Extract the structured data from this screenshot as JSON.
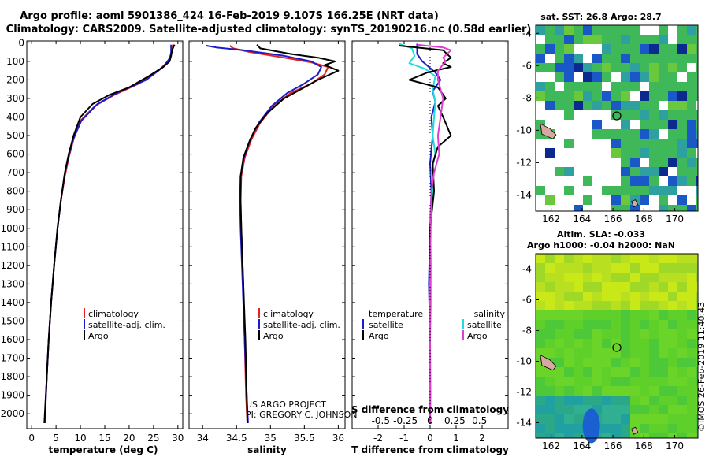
{
  "header": {
    "title_line1": "Argo profile: aoml 5901386_424 16-Feb-2019 9.107S 166.25E (NRT data)",
    "title_line2": "Climatology: CARS2009. Satellite-adjusted climatology: synTS_20190216.nc (0.58d earlier)"
  },
  "credits": {
    "line1": "US ARGO PROJECT",
    "line2": "PI: GREGORY C. JOHNSON"
  },
  "timestamp": "©IMOS 26-Feb-2019 11:40:43",
  "colors": {
    "climatology": "#e8221c",
    "satellite": "#1c1ccc",
    "argo": "#000000",
    "satellite_salinity": "#22dddd",
    "argo_salinity": "#e040d0"
  },
  "chart_data": [
    {
      "type": "line",
      "id": "temperature",
      "xlabel": "temperature (deg C)",
      "ylabel": "",
      "xlim": [
        -1,
        31
      ],
      "ylim": [
        2080,
        0
      ],
      "xticks": [
        "0",
        "5",
        "10",
        "15",
        "20",
        "25",
        "30"
      ],
      "xtick_values": [
        0,
        5,
        10,
        15,
        20,
        25,
        30
      ],
      "yticks": [
        "0",
        "100",
        "200",
        "300",
        "400",
        "500",
        "600",
        "700",
        "800",
        "900",
        "1000",
        "1100",
        "1200",
        "1300",
        "1400",
        "1500",
        "1600",
        "1700",
        "1800",
        "1900",
        "2000"
      ],
      "legend": [
        "climatology",
        "satellite-adj. clim.",
        "Argo"
      ],
      "series": [
        {
          "name": "climatology",
          "color": "#e8221c",
          "points": [
            [
              29,
              10
            ],
            [
              28.6,
              60
            ],
            [
              28,
              100
            ],
            [
              26,
              150
            ],
            [
              22,
              220
            ],
            [
              17,
              280
            ],
            [
              13,
              340
            ],
            [
              10,
              420
            ],
            [
              8.6,
              520
            ],
            [
              7.6,
              620
            ],
            [
              6.8,
              720
            ],
            [
              6,
              850
            ],
            [
              5.3,
              1000
            ],
            [
              4.6,
              1200
            ],
            [
              4,
              1400
            ],
            [
              3.5,
              1600
            ],
            [
              3.1,
              1800
            ],
            [
              2.7,
              2050
            ]
          ]
        },
        {
          "name": "satellite-adj. clim.",
          "color": "#1c1ccc",
          "points": [
            [
              28.6,
              10
            ],
            [
              28.6,
              50
            ],
            [
              28.4,
              80
            ],
            [
              27,
              130
            ],
            [
              23.5,
              200
            ],
            [
              17.5,
              270
            ],
            [
              13.5,
              330
            ],
            [
              10.2,
              420
            ],
            [
              8.5,
              520
            ],
            [
              7.5,
              620
            ],
            [
              6.7,
              720
            ],
            [
              6,
              850
            ],
            [
              5.3,
              1000
            ],
            [
              4.6,
              1200
            ],
            [
              4,
              1400
            ],
            [
              3.5,
              1600
            ],
            [
              3.1,
              1800
            ],
            [
              2.7,
              2050
            ]
          ]
        },
        {
          "name": "Argo",
          "color": "#000000",
          "points": [
            [
              29.3,
              10
            ],
            [
              28.8,
              40
            ],
            [
              28.6,
              70
            ],
            [
              28.3,
              100
            ],
            [
              27,
              130
            ],
            [
              24,
              180
            ],
            [
              20,
              240
            ],
            [
              16,
              280
            ],
            [
              12.5,
              330
            ],
            [
              10,
              400
            ],
            [
              8.6,
              500
            ],
            [
              7.6,
              600
            ],
            [
              6.8,
              700
            ],
            [
              6,
              850
            ],
            [
              5.3,
              1000
            ],
            [
              4.6,
              1200
            ],
            [
              4,
              1400
            ],
            [
              3.5,
              1600
            ],
            [
              3.1,
              1800
            ],
            [
              2.6,
              2050
            ]
          ]
        }
      ]
    },
    {
      "type": "line",
      "id": "salinity",
      "xlabel": "salinity",
      "xlim": [
        33.8,
        36.1
      ],
      "ylim": [
        2080,
        0
      ],
      "xticks": [
        "34",
        "34.5",
        "35",
        "35.5",
        "36"
      ],
      "xtick_values": [
        34,
        34.5,
        35,
        35.5,
        36
      ],
      "legend": [
        "climatology",
        "satellite-adj. clim.",
        "Argo"
      ],
      "series": [
        {
          "name": "climatology",
          "color": "#e8221c",
          "points": [
            [
              34.4,
              15
            ],
            [
              34.45,
              30
            ],
            [
              34.7,
              50
            ],
            [
              35.2,
              80
            ],
            [
              35.6,
              105
            ],
            [
              35.85,
              130
            ],
            [
              35.8,
              170
            ],
            [
              35.6,
              220
            ],
            [
              35.3,
              270
            ],
            [
              35.05,
              340
            ],
            [
              34.85,
              430
            ],
            [
              34.72,
              520
            ],
            [
              34.62,
              620
            ],
            [
              34.57,
              720
            ],
            [
              34.56,
              850
            ],
            [
              34.57,
              1000
            ],
            [
              34.6,
              1300
            ],
            [
              34.62,
              1600
            ],
            [
              34.64,
              1900
            ],
            [
              34.66,
              2050
            ]
          ]
        },
        {
          "name": "satellite-adj. clim.",
          "color": "#1c1ccc",
          "points": [
            [
              34.05,
              15
            ],
            [
              34.2,
              25
            ],
            [
              34.6,
              40
            ],
            [
              35.2,
              70
            ],
            [
              35.6,
              100
            ],
            [
              35.75,
              130
            ],
            [
              35.7,
              170
            ],
            [
              35.5,
              220
            ],
            [
              35.25,
              270
            ],
            [
              35.02,
              340
            ],
            [
              34.83,
              430
            ],
            [
              34.7,
              520
            ],
            [
              34.61,
              620
            ],
            [
              34.56,
              720
            ],
            [
              34.55,
              850
            ],
            [
              34.56,
              1000
            ],
            [
              34.59,
              1300
            ],
            [
              34.62,
              1600
            ],
            [
              34.65,
              1900
            ],
            [
              34.67,
              2050
            ]
          ]
        },
        {
          "name": "Argo",
          "color": "#000000",
          "points": [
            [
              34.8,
              10
            ],
            [
              34.85,
              30
            ],
            [
              35.3,
              60
            ],
            [
              35.7,
              80
            ],
            [
              35.95,
              100
            ],
            [
              35.8,
              120
            ],
            [
              36.0,
              150
            ],
            [
              35.7,
              200
            ],
            [
              35.45,
              250
            ],
            [
              35.2,
              300
            ],
            [
              34.95,
              380
            ],
            [
              34.78,
              460
            ],
            [
              34.68,
              540
            ],
            [
              34.6,
              620
            ],
            [
              34.56,
              720
            ],
            [
              34.56,
              850
            ],
            [
              34.57,
              1000
            ],
            [
              34.6,
              1300
            ],
            [
              34.63,
              1600
            ],
            [
              34.65,
              1900
            ],
            [
              34.66,
              2050
            ]
          ]
        }
      ]
    },
    {
      "type": "line",
      "id": "difference",
      "xlabel": "T difference from climatology",
      "xlabel_top": "S difference from climatology",
      "xlim": [
        -3,
        3
      ],
      "ylim": [
        2080,
        0
      ],
      "xticks": [
        "-2",
        "-1",
        "0",
        "1",
        "2"
      ],
      "xtick_values": [
        -2,
        -1,
        0,
        1,
        2
      ],
      "sticks": [
        "-0.5",
        "-0.25",
        "0",
        "0.25",
        "0.5"
      ],
      "stick_values": [
        -1.9,
        -0.95,
        0,
        0.95,
        1.9
      ],
      "legend_left_title": "temperature",
      "legend_right_title": "salinity",
      "legend_left": [
        "satellite",
        "Argo"
      ],
      "legend_right": [
        "satellite",
        "Argo"
      ],
      "series": [
        {
          "name": "T satellite",
          "color": "#1c1ccc",
          "points": [
            [
              -0.5,
              5
            ],
            [
              -0.5,
              60
            ],
            [
              -0.3,
              100
            ],
            [
              0.2,
              160
            ],
            [
              0.4,
              200
            ],
            [
              0.1,
              260
            ],
            [
              0.2,
              320
            ],
            [
              0.05,
              400
            ],
            [
              0.1,
              500
            ],
            [
              0,
              650
            ],
            [
              0.05,
              800
            ],
            [
              0,
              1000
            ],
            [
              -0.05,
              1300
            ],
            [
              0,
              1600
            ],
            [
              -0.02,
              1900
            ],
            [
              0,
              2050
            ]
          ]
        },
        {
          "name": "S satellite",
          "color": "#22dddd",
          "points": [
            [
              -1.2,
              5
            ],
            [
              -0.7,
              30
            ],
            [
              -0.6,
              70
            ],
            [
              -0.8,
              110
            ],
            [
              -0.2,
              140
            ],
            [
              0.2,
              180
            ],
            [
              0.1,
              250
            ],
            [
              0.2,
              320
            ],
            [
              0.15,
              400
            ],
            [
              0.1,
              500
            ],
            [
              0.2,
              600
            ],
            [
              0.05,
              700
            ],
            [
              0.1,
              800
            ],
            [
              0,
              1000
            ],
            [
              0.05,
              1300
            ],
            [
              0,
              1600
            ],
            [
              0.02,
              1900
            ],
            [
              0,
              2050
            ]
          ]
        },
        {
          "name": "T Argo",
          "color": "#000000",
          "points": [
            [
              -1.2,
              15
            ],
            [
              0.5,
              40
            ],
            [
              0.8,
              80
            ],
            [
              0.5,
              110
            ],
            [
              0.8,
              130
            ],
            [
              -0.1,
              160
            ],
            [
              -0.8,
              200
            ],
            [
              0.3,
              240
            ],
            [
              0.6,
              300
            ],
            [
              0.3,
              340
            ],
            [
              0.5,
              400
            ],
            [
              0.8,
              500
            ],
            [
              0.3,
              560
            ],
            [
              0.1,
              650
            ],
            [
              0.15,
              800
            ],
            [
              0,
              1000
            ],
            [
              0,
              1300
            ],
            [
              0,
              1600
            ],
            [
              0,
              1900
            ],
            [
              0,
              2050
            ]
          ]
        },
        {
          "name": "S Argo",
          "color": "#e040d0",
          "points": [
            [
              -0.5,
              10
            ],
            [
              0.5,
              25
            ],
            [
              0.8,
              40
            ],
            [
              0.5,
              80
            ],
            [
              0.6,
              100
            ],
            [
              0.3,
              150
            ],
            [
              0.3,
              200
            ],
            [
              0.5,
              300
            ],
            [
              0.4,
              400
            ],
            [
              0.3,
              500
            ],
            [
              0.35,
              600
            ],
            [
              0.15,
              700
            ],
            [
              0.05,
              800
            ],
            [
              0.02,
              1000
            ],
            [
              0,
              1300
            ],
            [
              0,
              1600
            ],
            [
              0,
              1900
            ],
            [
              0,
              2050
            ]
          ]
        }
      ]
    },
    {
      "type": "heatmap",
      "id": "sst_map",
      "title": "sat. SST: 26.8 Argo: 28.7",
      "xticks": [
        "162",
        "164",
        "166",
        "168",
        "170"
      ],
      "xtick_values": [
        162,
        164,
        166,
        168,
        170
      ],
      "yticks": [
        "-4",
        "-6",
        "-8",
        "-10",
        "-12",
        "-14"
      ],
      "ytick_values": [
        -4,
        -6,
        -8,
        -10,
        -12,
        -14
      ],
      "xlim": [
        161,
        171.5
      ],
      "ylim": [
        -15,
        -3.5
      ],
      "argo_position": [
        166.25,
        -9.107
      ]
    },
    {
      "type": "heatmap",
      "id": "sla_map",
      "title_line1": "Altim. SLA: -0.033",
      "title_line2": "Argo h1000: -0.04 h2000: NaN",
      "xticks": [
        "162",
        "164",
        "166",
        "168",
        "170"
      ],
      "xtick_values": [
        162,
        164,
        166,
        168,
        170
      ],
      "yticks": [
        "-4",
        "-6",
        "-8",
        "-10",
        "-12",
        "-14"
      ],
      "ytick_values": [
        -4,
        -6,
        -8,
        -10,
        -12,
        -14
      ],
      "xlim": [
        161,
        171.5
      ],
      "ylim": [
        -15,
        -3
      ],
      "argo_position": [
        166.25,
        -9.107
      ]
    }
  ]
}
